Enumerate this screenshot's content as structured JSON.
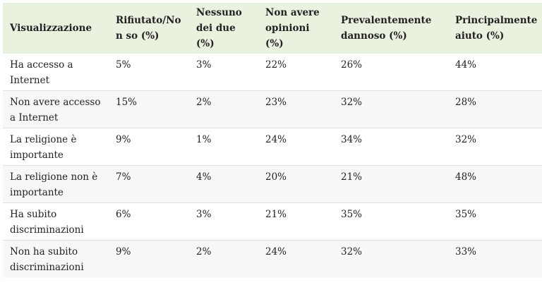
{
  "table": {
    "headers": [
      "Visualizzazione",
      "Rifiutato/No n so (%)",
      "Nessuno dei due (%)",
      "Non avere opinioni (%)",
      "Prevalentemente dannoso (%)",
      "Principalmente aiuto (%)"
    ],
    "rows": [
      [
        "Ha accesso a Internet",
        "5%",
        "3%",
        "22%",
        "26%",
        "44%"
      ],
      [
        "Non avere accesso a Internet",
        "15%",
        "2%",
        "23%",
        "32%",
        "28%"
      ],
      [
        "La religione è importante",
        "9%",
        "1%",
        "24%",
        "34%",
        "32%"
      ],
      [
        "La religione non è importante",
        "7%",
        "4%",
        "20%",
        "21%",
        "48%"
      ],
      [
        "Ha subito discriminazioni",
        "6%",
        "3%",
        "21%",
        "35%",
        "35%"
      ],
      [
        "Non ha subito discriminazioni",
        "9%",
        "2%",
        "24%",
        "32%",
        "33%"
      ]
    ]
  },
  "colors": {
    "header_background": "#e9f1df",
    "stripe_background": "#f7f7f7"
  }
}
